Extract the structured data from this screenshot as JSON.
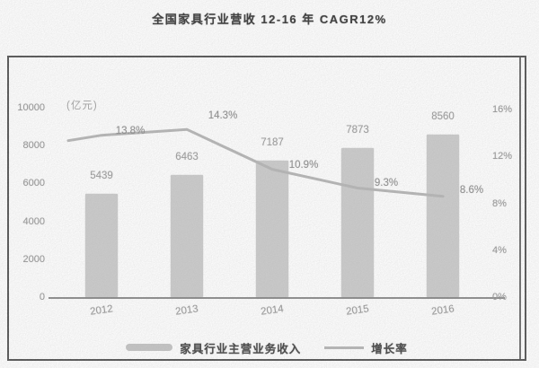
{
  "chart_data": {
    "type": "bar",
    "title": "全国家具行业营收 12-16 年 CAGR12%",
    "categories": [
      "2012",
      "2013",
      "2014",
      "2015",
      "2016"
    ],
    "series": [
      {
        "name": "家具行业主营业务收入",
        "type": "bar",
        "yaxis": "left",
        "values": [
          5439,
          6463,
          7187,
          7873,
          8560
        ]
      },
      {
        "name": "增长率",
        "type": "line",
        "yaxis": "right",
        "values": [
          13.8,
          14.3,
          10.9,
          9.3,
          8.6
        ],
        "unit": "%"
      }
    ],
    "left_axis": {
      "label": "(亿元)",
      "ticks": [
        0,
        2000,
        4000,
        6000,
        8000,
        10000
      ],
      "range": [
        0,
        10000
      ]
    },
    "right_axis": {
      "ticks": [
        "0%",
        "4%",
        "8%",
        "12%",
        "16%"
      ],
      "range_pct": [
        0,
        16
      ]
    },
    "grid": false,
    "legend_position": "bottom",
    "data_labels": true,
    "colors": {
      "bar_fill": "#cacaca",
      "line_stroke": "#b5b5b5",
      "axis_text": "#989898",
      "title_text": "#3a3a3a",
      "frame_border": "#565656"
    }
  }
}
